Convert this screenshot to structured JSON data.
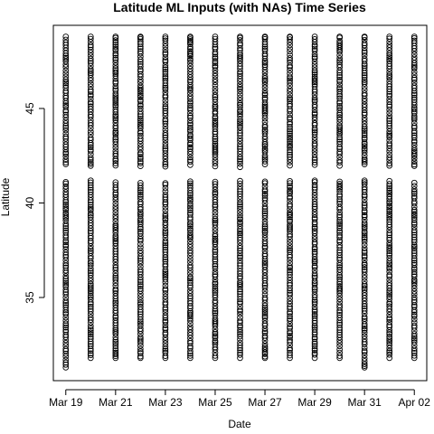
{
  "chart_data": {
    "type": "scatter",
    "title": "Latitude ML Inputs (with NAs) Time Series",
    "xlabel": "Date",
    "ylabel": "Latitude",
    "x_ticks": [
      {
        "date": "2020-03-19",
        "label": "Mar 19"
      },
      {
        "date": "2020-03-21",
        "label": "Mar 21"
      },
      {
        "date": "2020-03-23",
        "label": "Mar 23"
      },
      {
        "date": "2020-03-25",
        "label": "Mar 25"
      },
      {
        "date": "2020-03-27",
        "label": "Mar 27"
      },
      {
        "date": "2020-03-29",
        "label": "Mar 29"
      },
      {
        "date": "2020-03-31",
        "label": "Mar 31"
      },
      {
        "date": "2020-04-02",
        "label": "Apr 02"
      }
    ],
    "y_ticks": [
      35,
      40,
      45
    ],
    "xlim": [
      "2020-03-18 12:00",
      "2020-04-02 12:00"
    ],
    "ylim": [
      30.6,
      49.4
    ],
    "grid": false,
    "legend": "none",
    "marker": "open-circle",
    "series_by_date": [
      {
        "date": "2020-03-19",
        "latitude_min": 31.3,
        "latitude_max": 48.8,
        "gap": [
          41.2,
          41.9
        ]
      },
      {
        "date": "2020-03-20",
        "latitude_min": 31.8,
        "latitude_max": 48.8,
        "gap": [
          41.2,
          41.9
        ]
      },
      {
        "date": "2020-03-21",
        "latitude_min": 31.8,
        "latitude_max": 48.8,
        "gap": [
          41.2,
          41.9
        ]
      },
      {
        "date": "2020-03-22",
        "latitude_min": 31.8,
        "latitude_max": 48.8,
        "gap": [
          41.2,
          41.9
        ]
      },
      {
        "date": "2020-03-23",
        "latitude_min": 31.8,
        "latitude_max": 48.8,
        "gap": [
          41.2,
          41.9
        ]
      },
      {
        "date": "2020-03-24",
        "latitude_min": 31.8,
        "latitude_max": 48.8,
        "gap": [
          41.2,
          41.9
        ]
      },
      {
        "date": "2020-03-25",
        "latitude_min": 31.8,
        "latitude_max": 48.8,
        "gap": [
          41.2,
          41.9
        ]
      },
      {
        "date": "2020-03-26",
        "latitude_min": 31.8,
        "latitude_max": 48.8,
        "gap": [
          41.2,
          41.9
        ]
      },
      {
        "date": "2020-03-27",
        "latitude_min": 31.8,
        "latitude_max": 48.8,
        "gap": [
          41.2,
          41.9
        ]
      },
      {
        "date": "2020-03-28",
        "latitude_min": 31.8,
        "latitude_max": 48.8,
        "gap": [
          41.2,
          41.9
        ]
      },
      {
        "date": "2020-03-29",
        "latitude_min": 31.8,
        "latitude_max": 48.8,
        "gap": [
          41.2,
          41.9
        ]
      },
      {
        "date": "2020-03-30",
        "latitude_min": 31.8,
        "latitude_max": 48.8,
        "gap": [
          41.2,
          41.9
        ]
      },
      {
        "date": "2020-03-31",
        "latitude_min": 31.3,
        "latitude_max": 48.8,
        "gap": [
          41.2,
          41.9
        ]
      },
      {
        "date": "2020-04-01",
        "latitude_min": 31.8,
        "latitude_max": 48.8,
        "gap": [
          41.2,
          41.9
        ]
      },
      {
        "date": "2020-04-02",
        "latitude_min": 31.8,
        "latitude_max": 48.8,
        "gap": [
          41.2,
          41.9
        ]
      }
    ]
  }
}
